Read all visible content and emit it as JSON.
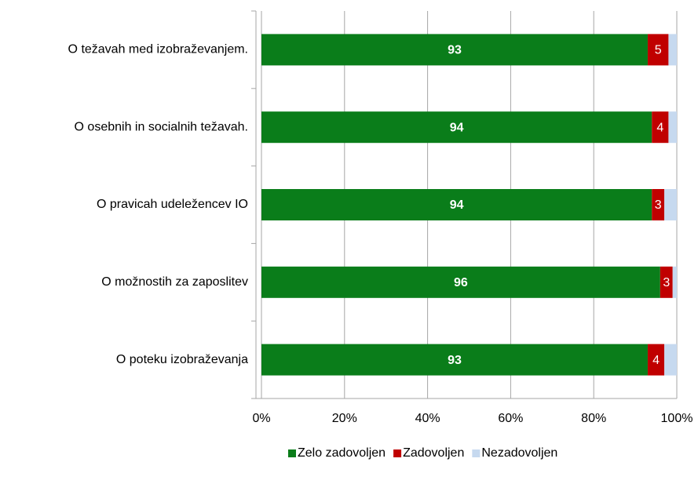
{
  "chart_data": {
    "type": "stacked_barh",
    "categories": [
      "O težavah med izobraževanjem.",
      "O osebnih in socialnih težavah.",
      "O pravicah udeležencev IO",
      "O možnostih za zaposlitev",
      "O poteku izobraževanja"
    ],
    "series": [
      {
        "name": "Zelo zadovoljen",
        "color": "#0a7d1a",
        "values": [
          93,
          94,
          94,
          96,
          93
        ],
        "data_labels": true,
        "label_weight": "bold"
      },
      {
        "name": "Zadovoljen",
        "color": "#c00000",
        "values": [
          5,
          4,
          3,
          3,
          4
        ],
        "data_labels": true,
        "label_weight": "normal"
      },
      {
        "name": "Nezadovoljen",
        "color": "#c6d9ef",
        "values": [
          2,
          2,
          3,
          1,
          3
        ],
        "data_labels": false,
        "label_weight": "normal"
      }
    ],
    "xlim": [
      0,
      100
    ],
    "xticks": [
      {
        "value": 0,
        "label": "0%"
      },
      {
        "value": 20,
        "label": "20%"
      },
      {
        "value": 40,
        "label": "40%"
      },
      {
        "value": 60,
        "label": "60%"
      },
      {
        "value": 80,
        "label": "80%"
      },
      {
        "value": 100,
        "label": "100%"
      }
    ],
    "grid": true,
    "legend": "bottom"
  }
}
